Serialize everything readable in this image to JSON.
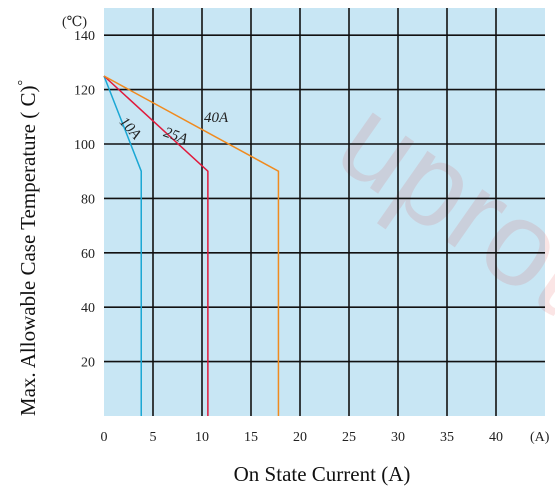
{
  "watermark_text": "uprotec",
  "chart_data": {
    "type": "line",
    "title": "",
    "xlabel": "On State Current (A)",
    "ylabel": "Max. Allowable Case Temperature ( C)",
    "ylabel_degree": "°",
    "x_unit": "(A)",
    "y_unit": "(℃)",
    "xlim": [
      0,
      45
    ],
    "ylim": [
      0,
      150
    ],
    "x_ticks": [
      "0",
      "5",
      "10",
      "15",
      "20",
      "25",
      "30",
      "35",
      "40"
    ],
    "y_ticks": [
      "20",
      "40",
      "60",
      "80",
      "100",
      "120",
      "140"
    ],
    "grid": true,
    "plot_background": "#c8e6f4",
    "series": [
      {
        "name": "10A",
        "color": "#1aa7d4",
        "x": [
          0,
          3.8,
          3.8
        ],
        "y": [
          125,
          90,
          0
        ]
      },
      {
        "name": "25A",
        "color": "#e01a3c",
        "x": [
          0,
          10.6,
          10.6
        ],
        "y": [
          125,
          90,
          0
        ]
      },
      {
        "name": "40A",
        "color": "#f08a1e",
        "x": [
          0,
          17.8,
          17.8
        ],
        "y": [
          125,
          90,
          0
        ]
      }
    ]
  }
}
